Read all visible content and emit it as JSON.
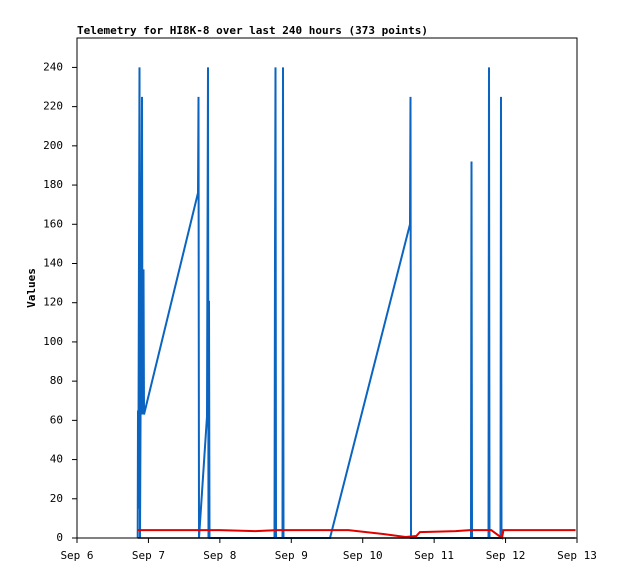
{
  "chart_data": {
    "type": "line",
    "title": "Telemetry for HI8K-8 over last 240 hours (373 points)",
    "y_label": "Values",
    "xlim": [
      0,
      7
    ],
    "xticks": [
      {
        "value": 0,
        "label": "Sep 6"
      },
      {
        "value": 1,
        "label": "Sep 7"
      },
      {
        "value": 2,
        "label": "Sep 8"
      },
      {
        "value": 3,
        "label": "Sep 9"
      },
      {
        "value": 4,
        "label": "Sep 10"
      },
      {
        "value": 5,
        "label": "Sep 11"
      },
      {
        "value": 6,
        "label": "Sep 12"
      },
      {
        "value": 7,
        "label": "Sep 13"
      }
    ],
    "ylim": [
      0,
      255
    ],
    "yticks": [
      0,
      20,
      40,
      60,
      80,
      100,
      120,
      140,
      160,
      180,
      200,
      220,
      240
    ],
    "series": [
      {
        "color": "#000000",
        "x": [
          0.85,
          6.98
        ],
        "values": [
          0,
          0
        ]
      },
      {
        "color": "#e00000",
        "x": [
          0.85,
          2.0,
          2.5,
          2.8,
          3.8,
          4.3,
          4.6,
          4.75,
          4.8,
          5.3,
          5.5,
          5.8,
          5.95,
          5.97,
          6.98
        ],
        "values": [
          4,
          4,
          3.5,
          4,
          4,
          2,
          0.5,
          1,
          3,
          3.5,
          4,
          4,
          0,
          4,
          4
        ]
      },
      {
        "color": "#0a64c0",
        "x": [
          0.85,
          0.854,
          0.858,
          0.875,
          0.882,
          0.91,
          0.917,
          0.931,
          0.938,
          1.694,
          1.701,
          1.708,
          1.82,
          1.834,
          1.841,
          1.848,
          1.855,
          2.765,
          2.772,
          2.779,
          2.786,
          2.877,
          2.884,
          2.891,
          3.542,
          4.662,
          4.669,
          4.676,
          5.516,
          5.523,
          5.53,
          5.761,
          5.768,
          5.775,
          5.929,
          5.936,
          5.943
        ],
        "values": [
          0,
          65,
          15,
          240,
          0,
          225,
          63,
          137,
          63,
          176,
          225,
          0,
          62,
          240,
          0,
          121,
          0,
          0,
          145,
          240,
          0,
          0,
          240,
          0,
          0,
          160,
          225,
          0,
          0,
          192,
          0,
          0,
          240,
          0,
          0,
          225,
          0
        ]
      }
    ]
  }
}
